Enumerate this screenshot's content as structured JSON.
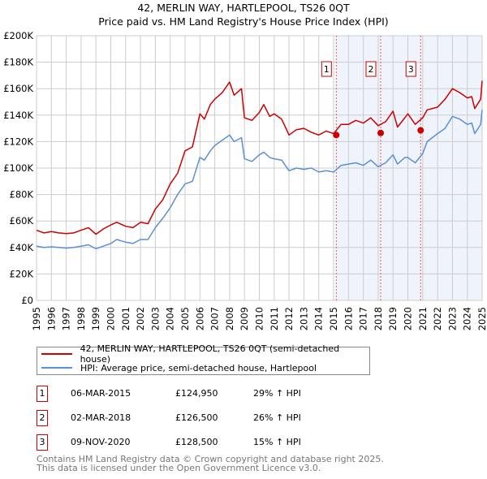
{
  "chart_data": {
    "type": "line",
    "title": "42, MERLIN WAY, HARTLEPOOL, TS26 0QT",
    "subtitle": "Price paid vs. HM Land Registry's House Price Index (HPI)",
    "xlim": [
      1995,
      2025
    ],
    "ylim": [
      0,
      200000
    ],
    "grid": true,
    "x_ticks": [
      "1995",
      "1996",
      "1997",
      "1998",
      "1999",
      "2000",
      "2001",
      "2002",
      "2003",
      "2004",
      "2005",
      "2006",
      "2007",
      "2008",
      "2009",
      "2010",
      "2011",
      "2012",
      "2013",
      "2014",
      "2015",
      "2016",
      "2017",
      "2018",
      "2019",
      "2020",
      "2021",
      "2022",
      "2023",
      "2024",
      "2025"
    ],
    "y_ticks": [
      {
        "v": 0,
        "label": "£0"
      },
      {
        "v": 20000,
        "label": "£20K"
      },
      {
        "v": 40000,
        "label": "£40K"
      },
      {
        "v": 60000,
        "label": "£60K"
      },
      {
        "v": 80000,
        "label": "£80K"
      },
      {
        "v": 100000,
        "label": "£100K"
      },
      {
        "v": 120000,
        "label": "£120K"
      },
      {
        "v": 140000,
        "label": "£140K"
      },
      {
        "v": 160000,
        "label": "£160K"
      },
      {
        "v": 180000,
        "label": "£180K"
      },
      {
        "v": 200000,
        "label": "£200K"
      }
    ],
    "series": [
      {
        "name": "42, MERLIN WAY, HARTLEPOOL, TS26 0QT (semi-detached house)",
        "color": "#cc0000",
        "points": [
          [
            1995,
            53
          ],
          [
            1995.5,
            51
          ],
          [
            1996,
            52
          ],
          [
            1996.5,
            51
          ],
          [
            1997,
            50.5
          ],
          [
            1997.5,
            51
          ],
          [
            1998,
            53
          ],
          [
            1998.5,
            55
          ],
          [
            1999,
            50
          ],
          [
            1999.5,
            54
          ],
          [
            2000,
            57
          ],
          [
            2000.4,
            59
          ],
          [
            2001,
            56
          ],
          [
            2001.5,
            55
          ],
          [
            2002,
            59
          ],
          [
            2002.5,
            58
          ],
          [
            2003,
            69
          ],
          [
            2003.5,
            76
          ],
          [
            2004,
            88
          ],
          [
            2004.5,
            96
          ],
          [
            2005,
            113
          ],
          [
            2005.5,
            116
          ],
          [
            2006,
            141
          ],
          [
            2006.3,
            137
          ],
          [
            2006.7,
            148
          ],
          [
            2007,
            152
          ],
          [
            2007.5,
            157
          ],
          [
            2008,
            165
          ],
          [
            2008.3,
            155
          ],
          [
            2008.8,
            160
          ],
          [
            2009,
            138
          ],
          [
            2009.5,
            136
          ],
          [
            2010,
            142
          ],
          [
            2010.3,
            148
          ],
          [
            2010.7,
            139
          ],
          [
            2011,
            141
          ],
          [
            2011.5,
            137
          ],
          [
            2012,
            125
          ],
          [
            2012.5,
            129
          ],
          [
            2013,
            130
          ],
          [
            2013.5,
            127
          ],
          [
            2014,
            125
          ],
          [
            2014.5,
            128
          ],
          [
            2015,
            126
          ],
          [
            2015.5,
            133
          ],
          [
            2016,
            133
          ],
          [
            2016.5,
            136
          ],
          [
            2017,
            134
          ],
          [
            2017.5,
            138
          ],
          [
            2018,
            132
          ],
          [
            2018.5,
            135
          ],
          [
            2019,
            143
          ],
          [
            2019.3,
            131
          ],
          [
            2019.8,
            138
          ],
          [
            2020,
            141
          ],
          [
            2020.5,
            133
          ],
          [
            2021,
            138
          ],
          [
            2021.3,
            144
          ],
          [
            2022,
            146
          ],
          [
            2022.5,
            152
          ],
          [
            2023,
            160
          ],
          [
            2023.5,
            157
          ],
          [
            2024,
            153
          ],
          [
            2024.3,
            154
          ],
          [
            2024.5,
            145
          ],
          [
            2024.9,
            152
          ],
          [
            2025,
            166
          ]
        ]
      },
      {
        "name": "HPI: Average price, semi-detached house, Hartlepool",
        "color": "#5b8fd6",
        "points": [
          [
            1995,
            41
          ],
          [
            1995.5,
            40
          ],
          [
            1996,
            40.5
          ],
          [
            1996.5,
            40
          ],
          [
            1997,
            39.5
          ],
          [
            1997.5,
            40
          ],
          [
            1998,
            41
          ],
          [
            1998.5,
            42
          ],
          [
            1999,
            39
          ],
          [
            1999.5,
            41
          ],
          [
            2000,
            43
          ],
          [
            2000.4,
            46
          ],
          [
            2001,
            44
          ],
          [
            2001.5,
            43
          ],
          [
            2002,
            46
          ],
          [
            2002.5,
            46
          ],
          [
            2003,
            55
          ],
          [
            2003.5,
            62
          ],
          [
            2004,
            70
          ],
          [
            2004.5,
            80
          ],
          [
            2005,
            88
          ],
          [
            2005.5,
            90
          ],
          [
            2006,
            108
          ],
          [
            2006.3,
            106
          ],
          [
            2006.7,
            113
          ],
          [
            2007,
            117
          ],
          [
            2007.5,
            121
          ],
          [
            2008,
            125
          ],
          [
            2008.3,
            120
          ],
          [
            2008.8,
            123
          ],
          [
            2009,
            107
          ],
          [
            2009.5,
            105
          ],
          [
            2010,
            110
          ],
          [
            2010.3,
            112
          ],
          [
            2010.7,
            108
          ],
          [
            2011,
            107
          ],
          [
            2011.5,
            106
          ],
          [
            2012,
            98
          ],
          [
            2012.5,
            100
          ],
          [
            2013,
            99
          ],
          [
            2013.5,
            100
          ],
          [
            2014,
            97
          ],
          [
            2014.5,
            98
          ],
          [
            2015,
            97
          ],
          [
            2015.5,
            102
          ],
          [
            2016,
            103
          ],
          [
            2016.5,
            104
          ],
          [
            2017,
            102
          ],
          [
            2017.5,
            106
          ],
          [
            2018,
            101
          ],
          [
            2018.5,
            104
          ],
          [
            2019,
            110
          ],
          [
            2019.3,
            103
          ],
          [
            2019.8,
            108
          ],
          [
            2020,
            108
          ],
          [
            2020.5,
            104
          ],
          [
            2021,
            111
          ],
          [
            2021.3,
            120
          ],
          [
            2022,
            126
          ],
          [
            2022.5,
            130
          ],
          [
            2023,
            139
          ],
          [
            2023.5,
            137
          ],
          [
            2024,
            133
          ],
          [
            2024.3,
            134
          ],
          [
            2024.5,
            126
          ],
          [
            2024.9,
            133
          ],
          [
            2025,
            144
          ]
        ]
      }
    ],
    "sales": [
      {
        "n": "1",
        "x": 2015.18,
        "price": 124950,
        "date": "06-MAR-2015",
        "price_label": "£124,950",
        "hpi": "29% ↑ HPI"
      },
      {
        "n": "2",
        "x": 2018.17,
        "price": 126500,
        "date": "02-MAR-2018",
        "price_label": "£126,500",
        "hpi": "26% ↑ HPI"
      },
      {
        "n": "3",
        "x": 2020.86,
        "price": 128500,
        "date": "09-NOV-2020",
        "price_label": "£128,500",
        "hpi": "15% ↑ HPI"
      }
    ],
    "shade_color": "#eef3fc",
    "footer": [
      "Contains HM Land Registry data © Crown copyright and database right 2025.",
      "This data is licensed under the Open Government Licence v3.0."
    ]
  }
}
